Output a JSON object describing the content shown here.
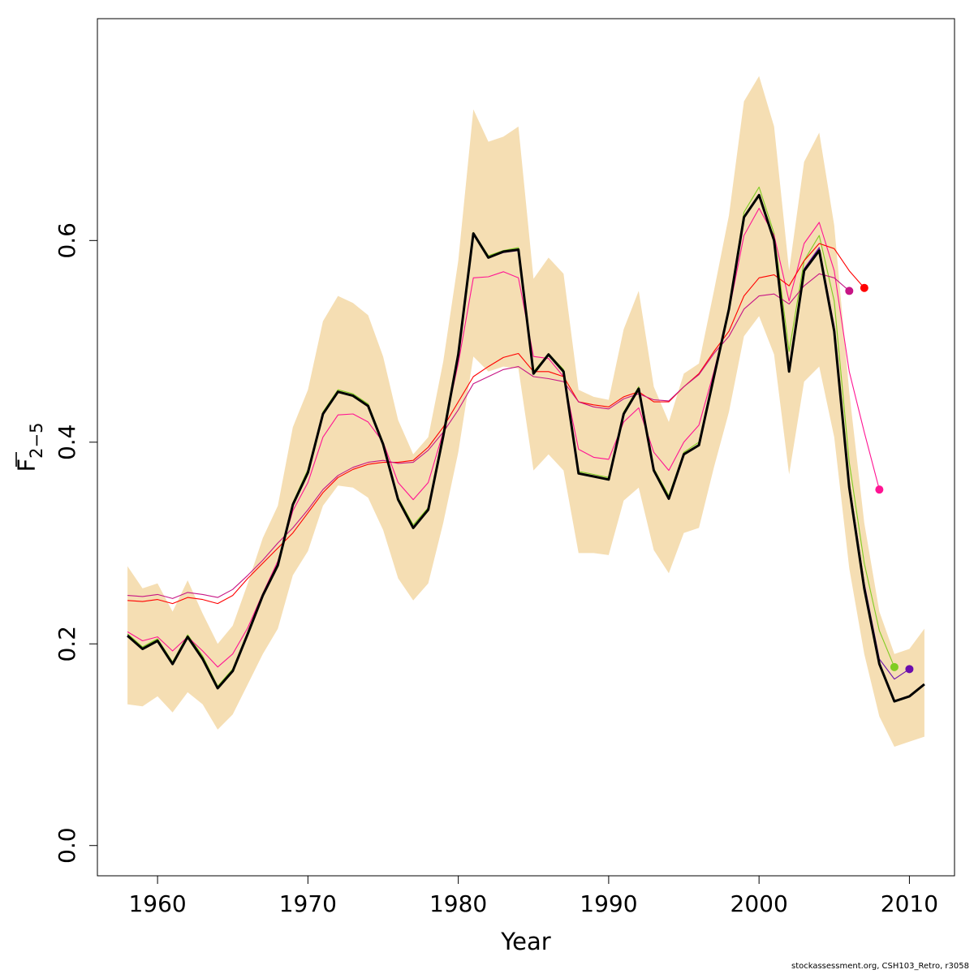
{
  "chart_data": {
    "type": "line",
    "xlabel": "Year",
    "ylabel_main": "F",
    "ylabel_sub": "2−5",
    "xlim": [
      1956,
      2013
    ],
    "ylim": [
      -0.03,
      0.82
    ],
    "x_ticks": [
      1960,
      1970,
      1980,
      1990,
      2000,
      2010
    ],
    "y_ticks": [
      0.0,
      0.2,
      0.4,
      0.6
    ],
    "y_tick_labels": [
      "0.0",
      "0.2",
      "0.4",
      "0.6"
    ],
    "colors": {
      "band": "#F5DEB3",
      "main": "#000000",
      "green": "#7FCC20",
      "red": "#FF0000",
      "pink": "#FF1493",
      "magenta": "#C71585",
      "purple": "#6A0DAD",
      "dark_magenta": "#8B0045"
    },
    "years": [
      1958,
      1959,
      1960,
      1961,
      1962,
      1963,
      1964,
      1965,
      1966,
      1967,
      1968,
      1969,
      1970,
      1971,
      1972,
      1973,
      1974,
      1975,
      1976,
      1977,
      1978,
      1979,
      1980,
      1981,
      1982,
      1983,
      1984,
      1985,
      1986,
      1987,
      1988,
      1989,
      1990,
      1991,
      1992,
      1993,
      1994,
      1995,
      1996,
      1997,
      1998,
      1999,
      2000,
      2001,
      2002,
      2003,
      2004,
      2005,
      2006,
      2007,
      2008,
      2009,
      2010,
      2011
    ],
    "confidence_band": {
      "upper": [
        0.277,
        0.255,
        0.26,
        0.232,
        0.263,
        0.23,
        0.2,
        0.218,
        0.26,
        0.305,
        0.337,
        0.415,
        0.452,
        0.52,
        0.545,
        0.538,
        0.526,
        0.485,
        0.422,
        0.388,
        0.405,
        0.48,
        0.58,
        0.73,
        0.698,
        0.703,
        0.713,
        0.562,
        0.583,
        0.567,
        0.452,
        0.445,
        0.442,
        0.512,
        0.55,
        0.455,
        0.42,
        0.468,
        0.478,
        0.55,
        0.625,
        0.738,
        0.763,
        0.713,
        0.57,
        0.678,
        0.707,
        0.615,
        0.45,
        0.32,
        0.232,
        0.19,
        0.195,
        0.215
      ],
      "lower": [
        0.14,
        0.138,
        0.148,
        0.132,
        0.152,
        0.14,
        0.115,
        0.13,
        0.16,
        0.19,
        0.215,
        0.268,
        0.292,
        0.337,
        0.357,
        0.355,
        0.345,
        0.313,
        0.265,
        0.243,
        0.26,
        0.32,
        0.39,
        0.485,
        0.47,
        0.475,
        0.473,
        0.372,
        0.388,
        0.372,
        0.29,
        0.29,
        0.288,
        0.342,
        0.355,
        0.293,
        0.27,
        0.31,
        0.315,
        0.375,
        0.43,
        0.505,
        0.525,
        0.487,
        0.368,
        0.46,
        0.475,
        0.405,
        0.275,
        0.19,
        0.128,
        0.098,
        0.103,
        0.108
      ]
    },
    "series": [
      {
        "color_key": "green",
        "x": [
          1958,
          1959,
          1960,
          1961,
          1962,
          1963,
          1964,
          1965,
          1966,
          1967,
          1968,
          1969,
          1970,
          1971,
          1972,
          1973,
          1974,
          1975,
          1976,
          1977,
          1978,
          1979,
          1980,
          1981,
          1982,
          1983,
          1984,
          1985,
          1986,
          1987,
          1988,
          1989,
          1990,
          1991,
          1992,
          1993,
          1994,
          1995,
          1996,
          1997,
          1998,
          1999,
          2000,
          2001,
          2002,
          2003,
          2004,
          2005,
          2006,
          2007,
          2008,
          2009
        ],
        "y": [
          0.21,
          0.197,
          0.205,
          0.182,
          0.209,
          0.188,
          0.158,
          0.175,
          0.212,
          0.25,
          0.28,
          0.34,
          0.373,
          0.43,
          0.452,
          0.448,
          0.438,
          0.4,
          0.345,
          0.318,
          0.335,
          0.41,
          0.49,
          0.608,
          0.585,
          0.59,
          0.593,
          0.47,
          0.488,
          0.472,
          0.371,
          0.368,
          0.365,
          0.43,
          0.455,
          0.374,
          0.347,
          0.39,
          0.4,
          0.467,
          0.535,
          0.628,
          0.653,
          0.607,
          0.49,
          0.58,
          0.605,
          0.54,
          0.38,
          0.28,
          0.213,
          0.177
        ],
        "endpoint": true
      },
      {
        "color_key": "purple",
        "x": [
          1958,
          1959,
          1960,
          1961,
          1962,
          1963,
          1964,
          1965,
          1966,
          1967,
          1968,
          1969,
          1970,
          1971,
          1972,
          1973,
          1974,
          1975,
          1976,
          1977,
          1978,
          1979,
          1980,
          1981,
          1982,
          1983,
          1984,
          1985,
          1986,
          1987,
          1988,
          1989,
          1990,
          1991,
          1992,
          1993,
          1994,
          1995,
          1996,
          1997,
          1998,
          1999,
          2000,
          2001,
          2002,
          2003,
          2004,
          2005,
          2006,
          2007,
          2008,
          2009,
          2010
        ],
        "y": [
          0.209,
          0.195,
          0.203,
          0.18,
          0.207,
          0.186,
          0.157,
          0.173,
          0.21,
          0.248,
          0.278,
          0.338,
          0.371,
          0.428,
          0.45,
          0.446,
          0.436,
          0.398,
          0.343,
          0.316,
          0.333,
          0.407,
          0.488,
          0.606,
          0.583,
          0.588,
          0.59,
          0.468,
          0.486,
          0.47,
          0.369,
          0.366,
          0.363,
          0.428,
          0.452,
          0.372,
          0.345,
          0.388,
          0.398,
          0.465,
          0.532,
          0.624,
          0.646,
          0.6,
          0.472,
          0.572,
          0.593,
          0.515,
          0.36,
          0.26,
          0.185,
          0.165,
          0.175
        ],
        "endpoint": true
      },
      {
        "color_key": "pink",
        "x": [
          1958,
          1959,
          1960,
          1961,
          1962,
          1963,
          1964,
          1965,
          1966,
          1967,
          1968,
          1969,
          1970,
          1971,
          1972,
          1973,
          1974,
          1975,
          1976,
          1977,
          1978,
          1979,
          1980,
          1981,
          1982,
          1983,
          1984,
          1985,
          1986,
          1987,
          1988,
          1989,
          1990,
          1991,
          1992,
          1993,
          1994,
          1995,
          1996,
          1997,
          1998,
          1999,
          2000,
          2001,
          2002,
          2003,
          2004,
          2005,
          2006,
          2007,
          2008
        ],
        "y": [
          0.212,
          0.203,
          0.207,
          0.193,
          0.207,
          0.193,
          0.177,
          0.19,
          0.216,
          0.25,
          0.282,
          0.332,
          0.36,
          0.405,
          0.427,
          0.428,
          0.42,
          0.4,
          0.36,
          0.343,
          0.36,
          0.41,
          0.478,
          0.563,
          0.564,
          0.569,
          0.563,
          0.485,
          0.483,
          0.465,
          0.393,
          0.385,
          0.383,
          0.42,
          0.434,
          0.39,
          0.372,
          0.4,
          0.417,
          0.47,
          0.53,
          0.605,
          0.632,
          0.605,
          0.54,
          0.597,
          0.618,
          0.57,
          0.47,
          0.41,
          0.353
        ],
        "endpoint": true
      },
      {
        "color_key": "red",
        "x": [
          1958,
          1959,
          1960,
          1961,
          1962,
          1963,
          1964,
          1965,
          1966,
          1967,
          1968,
          1969,
          1970,
          1971,
          1972,
          1973,
          1974,
          1975,
          1976,
          1977,
          1978,
          1979,
          1980,
          1981,
          1982,
          1983,
          1984,
          1985,
          1986,
          1987,
          1988,
          1989,
          1990,
          1991,
          1992,
          1993,
          1994,
          1995,
          1996,
          1997,
          1998,
          1999,
          2000,
          2001,
          2002,
          2003,
          2004,
          2005,
          2006,
          2007
        ],
        "y": [
          0.243,
          0.242,
          0.244,
          0.24,
          0.246,
          0.244,
          0.24,
          0.248,
          0.265,
          0.28,
          0.295,
          0.31,
          0.33,
          0.35,
          0.365,
          0.373,
          0.378,
          0.38,
          0.38,
          0.382,
          0.395,
          0.415,
          0.44,
          0.465,
          0.475,
          0.484,
          0.488,
          0.47,
          0.47,
          0.465,
          0.44,
          0.437,
          0.435,
          0.445,
          0.45,
          0.44,
          0.44,
          0.455,
          0.468,
          0.49,
          0.51,
          0.545,
          0.563,
          0.566,
          0.555,
          0.58,
          0.597,
          0.592,
          0.57,
          0.553
        ],
        "endpoint": true
      },
      {
        "color_key": "magenta",
        "x": [
          1958,
          1959,
          1960,
          1961,
          1962,
          1963,
          1964,
          1965,
          1966,
          1967,
          1968,
          1969,
          1970,
          1971,
          1972,
          1973,
          1974,
          1975,
          1976,
          1977,
          1978,
          1979,
          1980,
          1981,
          1982,
          1983,
          1984,
          1985,
          1986,
          1987,
          1988,
          1989,
          1990,
          1991,
          1992,
          1993,
          1994,
          1995,
          1996,
          1997,
          1998,
          1999,
          2000,
          2001,
          2002,
          2003,
          2004,
          2005,
          2006
        ],
        "y": [
          0.248,
          0.247,
          0.249,
          0.245,
          0.251,
          0.249,
          0.246,
          0.254,
          0.268,
          0.283,
          0.3,
          0.315,
          0.333,
          0.353,
          0.367,
          0.375,
          0.38,
          0.382,
          0.379,
          0.38,
          0.392,
          0.41,
          0.432,
          0.458,
          0.465,
          0.472,
          0.475,
          0.465,
          0.463,
          0.46,
          0.44,
          0.435,
          0.433,
          0.443,
          0.448,
          0.442,
          0.441,
          0.455,
          0.467,
          0.488,
          0.505,
          0.532,
          0.545,
          0.547,
          0.537,
          0.555,
          0.567,
          0.563,
          0.55
        ],
        "endpoint": true
      },
      {
        "color_key": "main",
        "main": true,
        "x": [
          1958,
          1959,
          1960,
          1961,
          1962,
          1963,
          1964,
          1965,
          1966,
          1967,
          1968,
          1969,
          1970,
          1971,
          1972,
          1973,
          1974,
          1975,
          1976,
          1977,
          1978,
          1979,
          1980,
          1981,
          1982,
          1983,
          1984,
          1985,
          1986,
          1987,
          1988,
          1989,
          1990,
          1991,
          1992,
          1993,
          1994,
          1995,
          1996,
          1997,
          1998,
          1999,
          2000,
          2001,
          2002,
          2003,
          2004,
          2005,
          2006,
          2007,
          2008,
          2009,
          2010,
          2011
        ],
        "y": [
          0.208,
          0.195,
          0.203,
          0.18,
          0.207,
          0.185,
          0.156,
          0.173,
          0.21,
          0.248,
          0.278,
          0.338,
          0.37,
          0.428,
          0.45,
          0.446,
          0.436,
          0.398,
          0.343,
          0.315,
          0.333,
          0.406,
          0.487,
          0.607,
          0.583,
          0.589,
          0.591,
          0.468,
          0.487,
          0.47,
          0.369,
          0.366,
          0.363,
          0.428,
          0.453,
          0.372,
          0.344,
          0.388,
          0.397,
          0.465,
          0.532,
          0.623,
          0.645,
          0.6,
          0.47,
          0.57,
          0.59,
          0.51,
          0.355,
          0.255,
          0.18,
          0.143,
          0.148,
          0.16
        ],
        "endpoint": false
      }
    ]
  },
  "footer": {
    "note": "stockassessment.org, CSH103_Retro, r3058"
  }
}
